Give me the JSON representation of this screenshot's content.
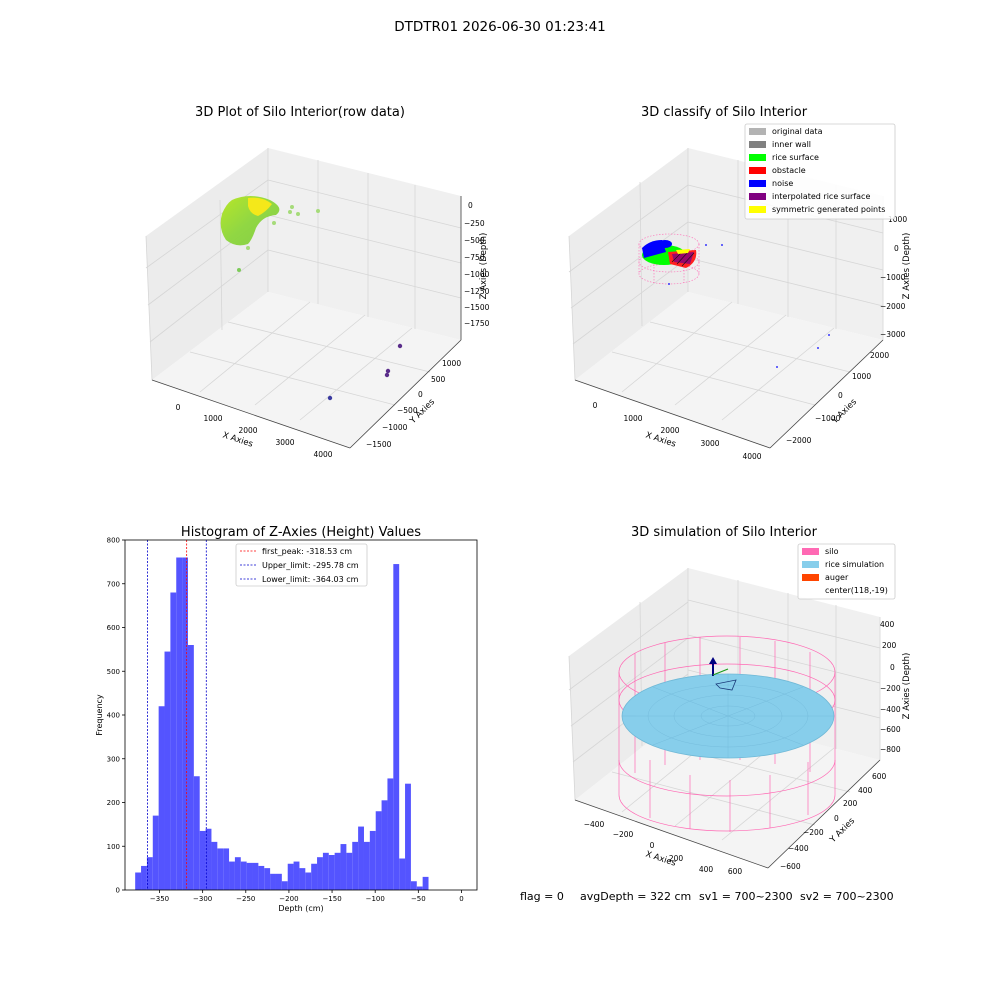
{
  "figure": {
    "suptitle": "DTDTR01 2026-06-30 01:23:41",
    "footer": [
      "flag = 0",
      "avgDepth = 322 cm",
      "sv1 = 700~2300",
      "sv2 = 700~2300"
    ]
  },
  "colors": {
    "hist_bar": "#4B4BFF",
    "hist_edge": "#3a3aff",
    "first_peak_line": "#FF0000",
    "limit_line": "#0000CC",
    "silo": "#FF69B4",
    "rice_simulation": "#87CEEB",
    "auger": "#FF4500",
    "original_data": "#B3B3B3",
    "inner_wall": "#808080",
    "rice_surface": "#00FF00",
    "obstacle": "#FF0000",
    "noise": "#0000FF",
    "interpolated_rice_surface": "#800080",
    "symmetric_generated_points": "#FFFF00"
  },
  "chart_data": [
    {
      "type": "scatter3d",
      "title": "3D Plot of Silo Interior(row data)",
      "xlabel": "X Axies",
      "ylabel": "Y Axies",
      "zlabel": "Z Axies (Depth)",
      "x_ticks": [
        "0",
        "1000",
        "2000",
        "3000",
        "4000"
      ],
      "y_ticks": [
        "−1500",
        "−1000",
        "−500",
        "0",
        "500",
        "1000"
      ],
      "z_ticks": [
        "0",
        "−250",
        "−500",
        "−750",
        "−1000",
        "−1250",
        "−1500",
        "−1750"
      ],
      "note": "dense cluster of points near origin colored by depth (green-yellow), a few outliers far in X (purple)"
    },
    {
      "type": "scatter3d",
      "title": "3D classify of Silo Interior",
      "xlabel": "X Axies",
      "ylabel": "Y Axies",
      "zlabel": "Z Axies (Depth)",
      "x_ticks": [
        "0",
        "1000",
        "2000",
        "3000",
        "4000"
      ],
      "y_ticks": [
        "−2000",
        "−1000",
        "0",
        "1000",
        "2000"
      ],
      "z_ticks": [
        "1000",
        "0",
        "−1000",
        "−2000",
        "−3000"
      ],
      "legend": {
        "placement": "top-right",
        "entries": [
          {
            "label": "original data",
            "color_key": "original_data"
          },
          {
            "label": "inner wall",
            "color_key": "inner_wall"
          },
          {
            "label": "rice surface",
            "color_key": "rice_surface"
          },
          {
            "label": "obstacle",
            "color_key": "obstacle"
          },
          {
            "label": "noise",
            "color_key": "noise"
          },
          {
            "label": "interpolated rice surface",
            "color_key": "interpolated_rice_surface"
          },
          {
            "label": "symmetric generated points",
            "color_key": "symmetric_generated_points"
          }
        ]
      }
    },
    {
      "type": "bar",
      "title": "Histogram of Z-Axies (Height) Values",
      "xlabel": "Depth (cm)",
      "ylabel": "Frequency",
      "xlim": [
        -390,
        18
      ],
      "ylim": [
        0,
        800
      ],
      "x_ticks": [
        -350,
        -300,
        -250,
        -200,
        -150,
        -100,
        -50,
        0
      ],
      "y_ticks": [
        0,
        100,
        200,
        300,
        400,
        500,
        600,
        700,
        800
      ],
      "bin_width": 6.8,
      "bin_start": -378.2,
      "values": [
        40,
        55,
        75,
        170,
        420,
        545,
        680,
        760,
        760,
        560,
        260,
        135,
        140,
        110,
        95,
        95,
        65,
        75,
        65,
        62,
        62,
        55,
        50,
        37,
        37,
        20,
        60,
        65,
        50,
        40,
        60,
        75,
        85,
        80,
        85,
        105,
        85,
        110,
        145,
        110,
        135,
        180,
        205,
        255,
        745,
        72,
        243,
        20,
        8,
        30
      ],
      "vlines": [
        {
          "value": -318.53,
          "label": "first_peak: -318.53 cm",
          "color_key": "first_peak_line"
        },
        {
          "value": -295.78,
          "label": "Upper_limit: -295.78 cm",
          "color_key": "limit_line"
        },
        {
          "value": -364.03,
          "label": "Lower_limit: -364.03 cm",
          "color_key": "limit_line"
        }
      ],
      "legend": {
        "placement": "top-center"
      }
    },
    {
      "type": "surface3d",
      "title": "3D simulation of Silo Interior",
      "xlabel": "X Axies",
      "ylabel": "Y Axies",
      "zlabel": "Z Axies (Depth)",
      "x_ticks": [
        "−400",
        "−200",
        "0",
        "200",
        "400",
        "600"
      ],
      "y_ticks": [
        "−600",
        "−400",
        "−200",
        "0",
        "200",
        "400",
        "600"
      ],
      "z_ticks": [
        "400",
        "200",
        "0",
        "−200",
        "−400",
        "−600",
        "−800"
      ],
      "legend": {
        "placement": "top-right",
        "entries": [
          {
            "label": "silo",
            "color_key": "silo"
          },
          {
            "label": "rice simulation",
            "color_key": "rice_simulation"
          },
          {
            "label": "auger",
            "color_key": "auger"
          },
          {
            "label": "center(118,-19)",
            "color_key": ""
          }
        ]
      }
    }
  ]
}
